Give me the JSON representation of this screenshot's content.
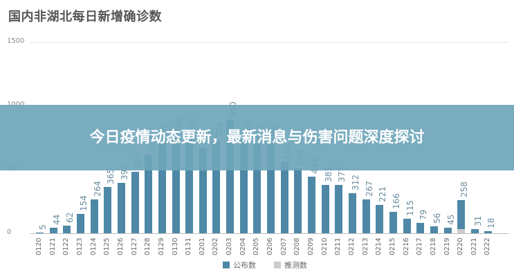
{
  "chart_data": {
    "type": "bar",
    "title": "国内非湖北每日新增确诊数",
    "xlabel": "",
    "ylabel": "",
    "ylim": [
      0,
      1500
    ],
    "yticks": [
      0,
      500,
      1000,
      1500
    ],
    "grid": true,
    "legend_position": "bottom",
    "categories": [
      "0120",
      "0121",
      "0122",
      "0123",
      "0124",
      "0125",
      "0126",
      "0127",
      "0128",
      "0129",
      "0130",
      "0131",
      "0201",
      "0202",
      "0203",
      "0204",
      "0205",
      "0206",
      "0207",
      "0208",
      "0209",
      "0210",
      "0211",
      "0212",
      "0213",
      "0214",
      "0215",
      "0216",
      "0217",
      "0218",
      "0219",
      "0220",
      "0221",
      "0222"
    ],
    "series": [
      {
        "name": "公布数",
        "color": "#4e88a6",
        "values": [
          5,
          44,
          62,
          154,
          264,
          365,
          398,
          480,
          619,
          707,
          766,
          765,
          669,
          726,
          890,
          731,
          707,
          696,
          558,
          509,
          444,
          381,
          377,
          312,
          267,
          221,
          166,
          115,
          79,
          56,
          45,
          258,
          31,
          18
        ]
      },
      {
        "name": "推测数",
        "color": "#cccccc",
        "values": [
          0,
          0,
          0,
          0,
          0,
          0,
          0,
          0,
          0,
          0,
          0,
          0,
          0,
          0,
          0,
          0,
          0,
          0,
          0,
          0,
          0,
          0,
          0,
          0,
          0,
          0,
          0,
          0,
          0,
          0,
          0,
          31,
          0,
          0
        ]
      }
    ]
  },
  "title": "国内非湖北每日新增确诊数",
  "yticks": [
    "1500",
    "1000",
    "500",
    "0"
  ],
  "legend": {
    "published": "公布数",
    "estimated": "推测数",
    "published_color": "#4e88a6",
    "estimated_color": "#cccccc"
  },
  "banner": {
    "text": "今日疫情动态更新，最新消息与伤害问题深度探讨",
    "color": "#6ea5ba"
  }
}
